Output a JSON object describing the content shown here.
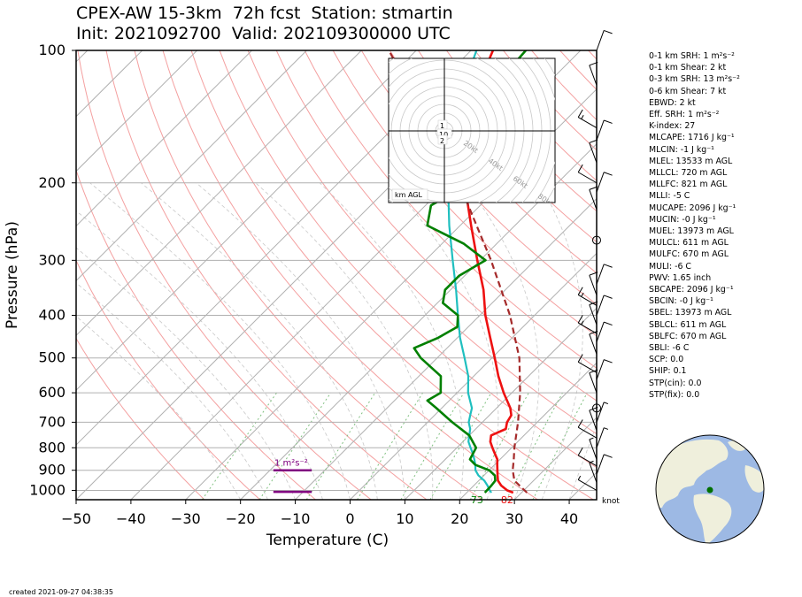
{
  "header": {
    "title_line1": "CPEX-AW 15-3km  72h fcst  Station: stmartin",
    "title_line2": "Init: 2021092700  Valid: 202109300000 UTC"
  },
  "footer": {
    "created": "created 2021-09-27 04:38:35"
  },
  "indices": [
    {
      "name": "0-1 km SRH",
      "value": "1 m²s⁻²"
    },
    {
      "name": "0-1 km Shear",
      "value": "2 kt"
    },
    {
      "name": "0-3 km SRH",
      "value": "13 m²s⁻²"
    },
    {
      "name": "0-6 km Shear",
      "value": "7 kt"
    },
    {
      "name": "EBWD",
      "value": "2 kt"
    },
    {
      "name": "Eff. SRH",
      "value": "1 m²s⁻²"
    },
    {
      "name": "K-index",
      "value": "27"
    },
    {
      "name": "MLCAPE",
      "value": "1716 J kg⁻¹"
    },
    {
      "name": "MLCIN",
      "value": "-1 J kg⁻¹"
    },
    {
      "name": "MLEL",
      "value": "13533 m AGL"
    },
    {
      "name": "MLLCL",
      "value": "720 m AGL"
    },
    {
      "name": "MLLFC",
      "value": "821 m AGL"
    },
    {
      "name": "MLLI",
      "value": "-5 C"
    },
    {
      "name": "MUCAPE",
      "value": "2096 J kg⁻¹"
    },
    {
      "name": "MUCIN",
      "value": "-0 J kg⁻¹"
    },
    {
      "name": "MUEL",
      "value": "13973 m AGL"
    },
    {
      "name": "MULCL",
      "value": "611 m AGL"
    },
    {
      "name": "MULFC",
      "value": "670 m AGL"
    },
    {
      "name": "MULI",
      "value": "-6 C"
    },
    {
      "name": "PWV",
      "value": "1.65 inch"
    },
    {
      "name": "SBCAPE",
      "value": "2096 J kg⁻¹"
    },
    {
      "name": "SBCIN",
      "value": "-0 J kg⁻¹"
    },
    {
      "name": "SBEL",
      "value": "13973 m AGL"
    },
    {
      "name": "SBLCL",
      "value": "611 m AGL"
    },
    {
      "name": "SBLFC",
      "value": "670 m AGL"
    },
    {
      "name": "SBLI",
      "value": "-6 C"
    },
    {
      "name": "SCP",
      "value": "0.0"
    },
    {
      "name": "SHIP",
      "value": "0.1"
    },
    {
      "name": "STP(cin)",
      "value": "0.0"
    },
    {
      "name": "STP(fix)",
      "value": "0.0"
    }
  ],
  "chart_data": {
    "type": "skew-t",
    "xlabel": "Temperature (C)",
    "ylabel": "Pressure (hPa)",
    "xlim": [
      -50,
      45
    ],
    "ylim": [
      1050,
      100
    ],
    "pressure_ticks": [
      100,
      200,
      300,
      400,
      500,
      600,
      700,
      800,
      900,
      1000
    ],
    "temperature_ticks": [
      -50,
      -40,
      -30,
      -20,
      -10,
      0,
      10,
      20,
      30,
      40
    ],
    "grid": true,
    "colors": {
      "temperature": "#ee1111",
      "dewpoint": "#1fbfbf",
      "parcel": "#a52a2a",
      "equivalent_potential_temperature": "#008000",
      "srh_bar": "#800080",
      "isotherm": "#b0b0b0",
      "dry_adiabat": "#f4a0a0",
      "moist_adiabat": "#c8c8c8",
      "mixing_ratio": "#80c080"
    },
    "series": [
      {
        "key": "temperature",
        "pressure": [
          1012,
          1000,
          975,
          950,
          925,
          900,
          875,
          850,
          825,
          800,
          775,
          750,
          725,
          700,
          675,
          650,
          600,
          550,
          500,
          450,
          400,
          350,
          300,
          250,
          200,
          175,
          150,
          125,
          100
        ],
        "values": [
          28.5,
          27,
          25,
          23.5,
          22.5,
          21.5,
          20.5,
          19.5,
          18,
          16.5,
          15,
          14,
          15.5,
          14.5,
          14,
          12.5,
          8.5,
          4.5,
          0.5,
          -4,
          -9,
          -14,
          -20.5,
          -28,
          -37,
          -42.5,
          -47,
          -51.5,
          -56
        ]
      },
      {
        "key": "dewpoint",
        "pressure": [
          1012,
          1000,
          975,
          950,
          925,
          900,
          875,
          850,
          825,
          800,
          775,
          750,
          725,
          700,
          675,
          650,
          600,
          550,
          500,
          450,
          400,
          350,
          300,
          250,
          200,
          175,
          150,
          125,
          100
        ],
        "values": [
          24.5,
          23.8,
          22.5,
          21,
          19,
          17.5,
          16.5,
          15.3,
          14,
          12.5,
          11,
          10,
          9,
          7.5,
          6.5,
          5.5,
          2,
          -1,
          -5,
          -9.5,
          -14,
          -19,
          -25,
          -32,
          -40,
          -45,
          -50,
          -54,
          -59
        ]
      },
      {
        "key": "parcel",
        "pressure": [
          1012,
          950,
          900,
          850,
          800,
          700,
          600,
          500,
          400,
          300,
          250,
          200,
          150,
          125,
          100
        ],
        "values": [
          31,
          26.5,
          24.3,
          22.5,
          20.5,
          16.5,
          11.5,
          5,
          -4.5,
          -18,
          -27,
          -38,
          -53,
          -63,
          -75
        ]
      },
      {
        "key": "equivalent_potential_temperature",
        "pressure": [
          1012,
          975,
          950,
          925,
          900,
          875,
          850,
          800,
          750,
          700,
          650,
          625,
          600,
          550,
          500,
          475,
          450,
          425,
          400,
          375,
          350,
          325,
          300,
          275,
          250,
          225,
          200,
          175,
          150,
          125,
          100
        ],
        "values": [
          23.3,
          23.2,
          23,
          22,
          20,
          16.5,
          14.5,
          13.5,
          10,
          4.5,
          -1,
          -4,
          -3,
          -6,
          -13,
          -16,
          -13.5,
          -12,
          -14,
          -19,
          -21,
          -21,
          -19,
          -26,
          -36,
          -39,
          -36,
          -39,
          -46,
          -49,
          -50
        ]
      }
    ],
    "surface_labels": [
      {
        "text": "73",
        "temp": 23,
        "pressure": 1040,
        "color": "#008000"
      },
      {
        "text": "82",
        "temp": 28.5,
        "pressure": 1040,
        "color": "#ee1111"
      }
    ],
    "srh_label": "1 m²s⁻²",
    "srh_layers": [
      {
        "pressure": 900,
        "temp_from": -14,
        "temp_to": -7
      },
      {
        "pressure": 1008,
        "temp_from": -14,
        "temp_to": -7
      }
    ],
    "wind_barb_unit": "knot",
    "wind_barbs": [
      {
        "pressure": 100,
        "speed": 10
      },
      {
        "pressure": 120,
        "speed": 10
      },
      {
        "pressure": 150,
        "speed": 15
      },
      {
        "pressure": 160,
        "speed": 10
      },
      {
        "pressure": 180,
        "speed": 10
      },
      {
        "pressure": 200,
        "speed": 10
      },
      {
        "pressure": 210,
        "speed": 10
      },
      {
        "pressure": 230,
        "speed": 10
      },
      {
        "pressure": 270,
        "speed": 0
      },
      {
        "pressure": 340,
        "speed": 10
      },
      {
        "pressure": 360,
        "speed": 10
      },
      {
        "pressure": 380,
        "speed": 15
      },
      {
        "pressure": 400,
        "speed": 10
      },
      {
        "pressure": 420,
        "speed": 10
      },
      {
        "pressure": 440,
        "speed": 15
      },
      {
        "pressure": 460,
        "speed": 10
      },
      {
        "pressure": 490,
        "speed": 10
      },
      {
        "pressure": 540,
        "speed": 10
      },
      {
        "pressure": 560,
        "speed": 10
      },
      {
        "pressure": 600,
        "speed": 10
      },
      {
        "pressure": 650,
        "speed": 0
      },
      {
        "pressure": 700,
        "speed": 5
      },
      {
        "pressure": 730,
        "speed": 10
      },
      {
        "pressure": 760,
        "speed": 10
      },
      {
        "pressure": 800,
        "speed": 5
      },
      {
        "pressure": 850,
        "speed": 5
      },
      {
        "pressure": 880,
        "speed": 10
      },
      {
        "pressure": 920,
        "speed": 10
      },
      {
        "pressure": 960,
        "speed": 5
      },
      {
        "pressure": 1000,
        "speed": 5
      }
    ],
    "hodograph": {
      "ring_labels": [
        "20kt",
        "40kt",
        "60kt",
        "80kt"
      ],
      "corner_label": "km AGL",
      "height_labels": [
        "1",
        "10",
        "2"
      ]
    }
  }
}
